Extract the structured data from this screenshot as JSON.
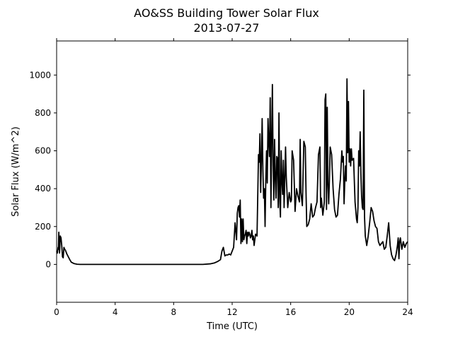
{
  "chart_data": {
    "type": "line",
    "title": "AO&SS Building Tower Solar Flux",
    "subtitle": "2013-07-27",
    "xlabel": "Time (UTC)",
    "ylabel": "Solar Flux (W/m^2)",
    "xlim": [
      0,
      24
    ],
    "ylim": [
      -200,
      1180
    ],
    "xticks": [
      0,
      4,
      8,
      12,
      16,
      20,
      24
    ],
    "yticks": [
      0,
      200,
      400,
      600,
      800,
      1000
    ],
    "grid": false,
    "line_color": "#000000",
    "series": [
      {
        "x": [
          0,
          0.05,
          0.1,
          0.12,
          0.15,
          0.2,
          0.25,
          0.3,
          0.35,
          0.4,
          0.45,
          0.5,
          0.55,
          0.6,
          0.65,
          0.7,
          0.8,
          0.9,
          1.0,
          1.2,
          1.4,
          1.6,
          1.8,
          2.0,
          2.5,
          3,
          4,
          5,
          6,
          7,
          8,
          9,
          10,
          10.5,
          10.8,
          11.0,
          11.1,
          11.2,
          11.3,
          11.4,
          11.5,
          11.6,
          11.7,
          11.8,
          11.9,
          12.0,
          12.1,
          12.2,
          12.3,
          12.35,
          12.4,
          12.45,
          12.5,
          12.55,
          12.6,
          12.65,
          12.7,
          12.75,
          12.8,
          12.85,
          12.9,
          12.95,
          13.0,
          13.05,
          13.1,
          13.15,
          13.2,
          13.25,
          13.3,
          13.35,
          13.4,
          13.45,
          13.5,
          13.6,
          13.7,
          13.8,
          13.85,
          13.9,
          13.95,
          14.0,
          14.05,
          14.1,
          14.15,
          14.2,
          14.25,
          14.3,
          14.35,
          14.4,
          14.45,
          14.5,
          14.55,
          14.6,
          14.65,
          14.7,
          14.75,
          14.8,
          14.85,
          14.9,
          14.95,
          15.0,
          15.05,
          15.1,
          15.15,
          15.2,
          15.25,
          15.3,
          15.35,
          15.4,
          15.45,
          15.5,
          15.55,
          15.6,
          15.65,
          15.7,
          15.8,
          15.9,
          16.0,
          16.05,
          16.1,
          16.2,
          16.3,
          16.4,
          16.5,
          16.6,
          16.65,
          16.7,
          16.8,
          16.9,
          17.0,
          17.05,
          17.1,
          17.2,
          17.3,
          17.4,
          17.5,
          17.6,
          17.7,
          17.8,
          17.9,
          18.0,
          18.05,
          18.1,
          18.2,
          18.3,
          18.35,
          18.4,
          18.45,
          18.5,
          18.55,
          18.6,
          18.65,
          18.7,
          18.8,
          18.9,
          19.0,
          19.1,
          19.2,
          19.3,
          19.4,
          19.5,
          19.55,
          19.6,
          19.65,
          19.7,
          19.75,
          19.8,
          19.85,
          19.9,
          19.95,
          20.0,
          20.05,
          20.1,
          20.15,
          20.2,
          20.3,
          20.4,
          20.5,
          20.55,
          20.6,
          20.65,
          20.7,
          20.75,
          20.8,
          20.85,
          20.9,
          20.95,
          21.0,
          21.05,
          21.1,
          21.2,
          21.3,
          21.4,
          21.5,
          21.6,
          21.7,
          21.8,
          21.9,
          22.0,
          22.1,
          22.2,
          22.3,
          22.4,
          22.5,
          22.6,
          22.7,
          22.8,
          22.9,
          23.0,
          23.1,
          23.2,
          23.3,
          23.35,
          23.4,
          23.45,
          23.5,
          23.6,
          23.7,
          23.8,
          23.9,
          24.0
        ],
        "y": [
          70,
          60,
          90,
          80,
          170,
          60,
          150,
          140,
          100,
          40,
          35,
          90,
          80,
          75,
          65,
          55,
          40,
          25,
          12,
          4,
          1,
          0,
          0,
          0,
          0,
          0,
          0,
          0,
          0,
          0,
          0,
          0,
          0,
          3,
          8,
          15,
          20,
          25,
          70,
          90,
          45,
          50,
          50,
          55,
          50,
          70,
          90,
          220,
          130,
          270,
          300,
          310,
          250,
          340,
          110,
          240,
          120,
          240,
          130,
          150,
          160,
          180,
          110,
          170,
          150,
          170,
          160,
          140,
          150,
          180,
          130,
          150,
          100,
          160,
          150,
          580,
          540,
          690,
          380,
          550,
          770,
          500,
          350,
          400,
          200,
          450,
          600,
          430,
          770,
          650,
          570,
          880,
          300,
          670,
          950,
          520,
          340,
          660,
          460,
          350,
          570,
          560,
          300,
          800,
          350,
          250,
          600,
          440,
          370,
          550,
          300,
          450,
          620,
          460,
          300,
          380,
          330,
          340,
          600,
          550,
          280,
          400,
          360,
          330,
          660,
          380,
          310,
          650,
          620,
          380,
          200,
          210,
          240,
          320,
          250,
          260,
          300,
          330,
          580,
          620,
          300,
          350,
          260,
          330,
          870,
          900,
          290,
          830,
          420,
          320,
          450,
          620,
          580,
          400,
          290,
          250,
          260,
          370,
          450,
          600,
          540,
          570,
          320,
          440,
          520,
          440,
          980,
          590,
          860,
          540,
          610,
          520,
          610,
          550,
          560,
          330,
          240,
          220,
          300,
          600,
          520,
          700,
          480,
          360,
          300,
          290,
          920,
          250,
          150,
          100,
          150,
          220,
          300,
          280,
          230,
          200,
          190,
          120,
          100,
          110,
          120,
          80,
          90,
          150,
          220,
          100,
          50,
          30,
          20,
          50,
          100,
          140,
          30,
          120,
          140,
          80,
          120,
          90,
          110,
          120
        ]
      }
    ]
  }
}
